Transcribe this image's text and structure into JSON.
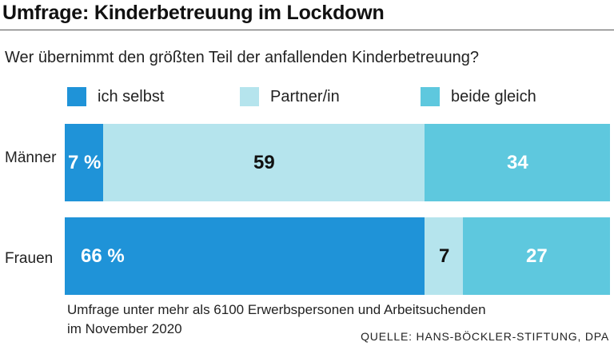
{
  "title": "Umfrage: Kinderbetreuung im Lockdown",
  "question": "Wer übernimmt den größten Teil der anfallenden Kinderbetreuung?",
  "colors": {
    "ich_selbst": "#1f93d8",
    "partner": "#b5e4ed",
    "beide": "#5ec8de",
    "text_dark": "#111111",
    "text_light": "#ffffff"
  },
  "chart_data": {
    "type": "bar",
    "orientation": "horizontal",
    "stacked": true,
    "title": "Umfrage: Kinderbetreuung im Lockdown",
    "subtitle": "Wer übernimmt den größten Teil der anfallenden Kinderbetreuung?",
    "categories": [
      "Männer",
      "Frauen"
    ],
    "unit": "%",
    "series": [
      {
        "name": "ich selbst",
        "values": [
          7,
          66
        ],
        "color": "#1f93d8",
        "labels": [
          "7 %",
          "66 %"
        ],
        "label_color": "#ffffff"
      },
      {
        "name": "Partner/in",
        "values": [
          59,
          7
        ],
        "color": "#b5e4ed",
        "labels": [
          "59",
          "7"
        ],
        "label_color": "#111111"
      },
      {
        "name": "beide gleich",
        "values": [
          34,
          27
        ],
        "color": "#5ec8de",
        "labels": [
          "34",
          "27"
        ],
        "label_color": "#ffffff"
      }
    ],
    "xlim": [
      0,
      100
    ],
    "legend_position": "top"
  },
  "footnote": {
    "line1": "Umfrage unter mehr als 6100 Erwerbspersonen und Arbeitsuchenden",
    "line2": "im November 2020"
  },
  "source": "QUELLE: HANS-BÖCKLER-STIFTUNG, DPA"
}
